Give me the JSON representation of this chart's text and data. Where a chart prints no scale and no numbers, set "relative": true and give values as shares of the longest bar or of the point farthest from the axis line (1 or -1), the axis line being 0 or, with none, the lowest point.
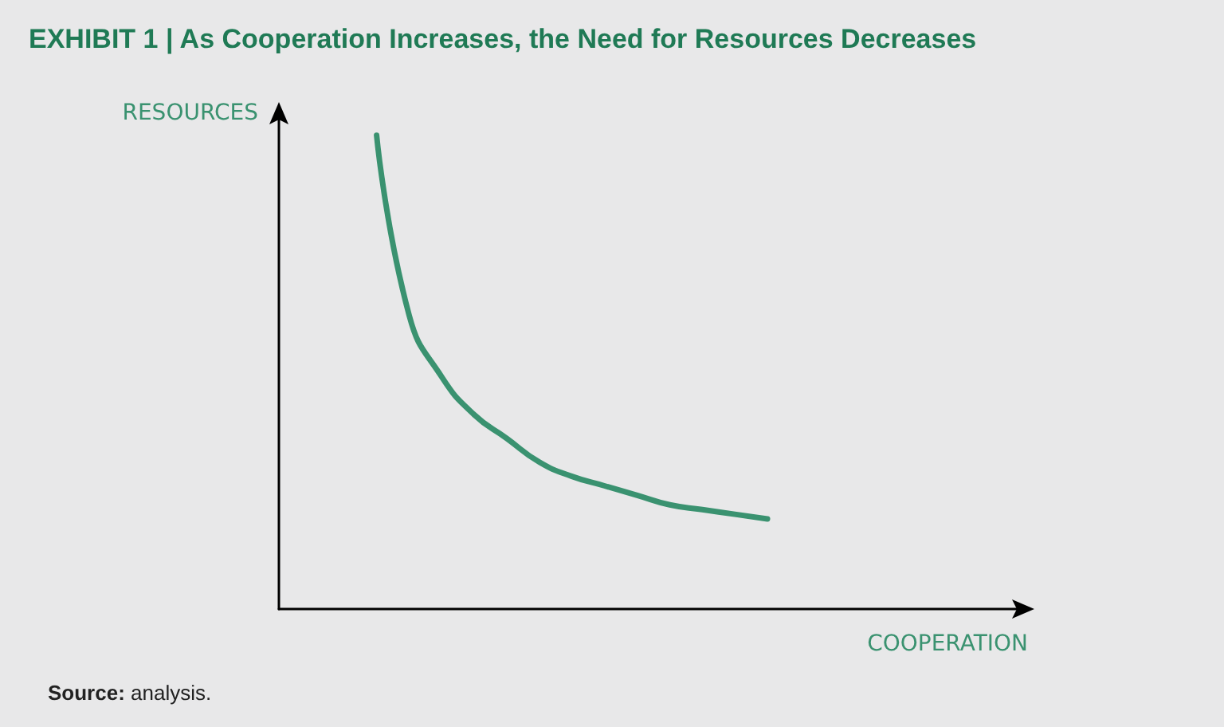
{
  "chart_data": {
    "type": "line",
    "relative": true,
    "title": "EXHIBIT 1 | As Cooperation Increases, the Need for Resources Decreases",
    "xlabel": "COOPERATION",
    "ylabel": "RESOURCES",
    "annotations": [
      "Source: analysis."
    ],
    "categories": [
      null,
      null,
      null,
      null,
      null,
      null,
      null,
      null,
      null,
      null,
      null,
      null,
      null,
      null,
      null,
      null,
      null,
      null,
      null,
      null,
      null,
      null,
      null,
      null
    ],
    "series": [
      {
        "color": "#3a9270",
        "values": [
          null,
          null,
          null,
          1.0,
          0.62,
          0.49,
          0.41,
          0.36,
          0.31,
          0.28,
          0.26,
          0.24,
          0.22,
          0.21,
          0.2,
          0.19,
          null,
          null,
          null,
          null,
          null,
          null,
          null,
          null
        ]
      }
    ],
    "grid": false,
    "marker": "none",
    "line_style": "solid"
  }
}
